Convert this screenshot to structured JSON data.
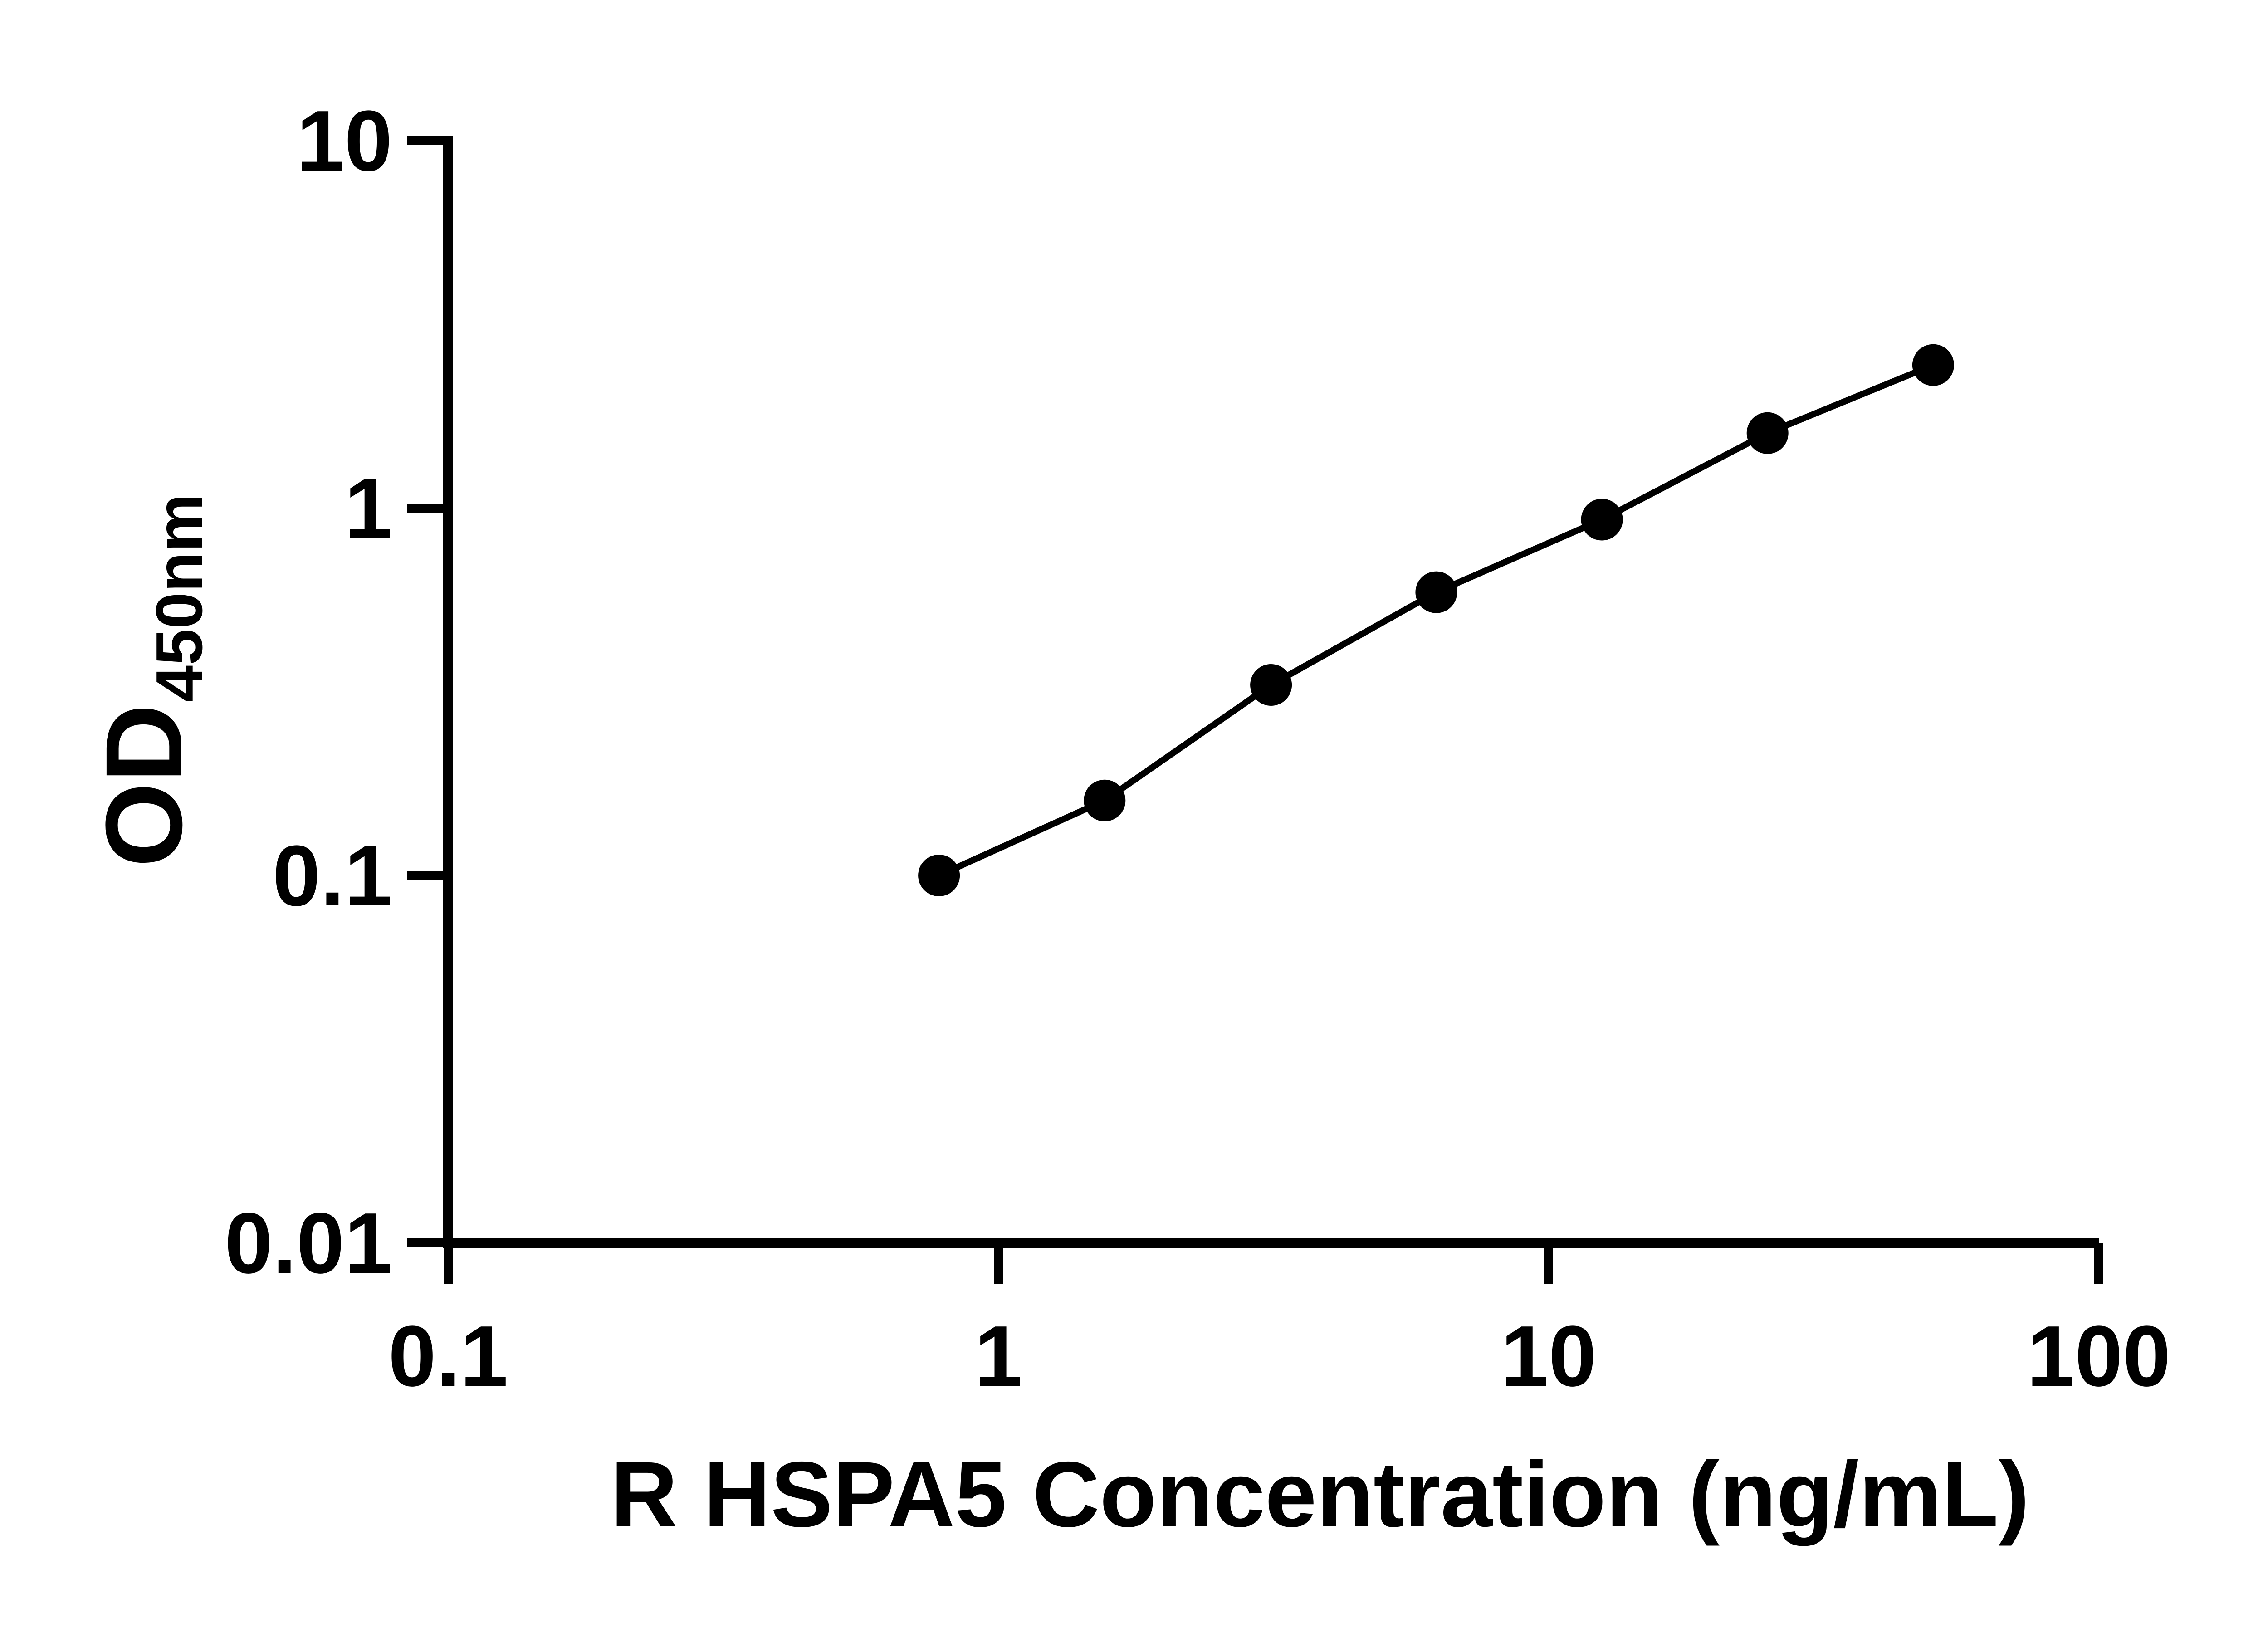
{
  "figure": {
    "background_color": "#ffffff",
    "axis_color": "#000000",
    "marker_color": "#000000",
    "line_color": "#000000"
  },
  "chart_data": {
    "type": "scatter",
    "title": "",
    "xlabel": "R HSPA5 Concentration (ng/mL)",
    "ylabel": "OD",
    "ylabel_subscript": "450nm",
    "xscale": "log",
    "yscale": "log",
    "xlim": [
      0.1,
      100
    ],
    "ylim": [
      0.01,
      10
    ],
    "x_tick_values": [
      0.1,
      1,
      10,
      100
    ],
    "x_tick_labels": [
      "0.1",
      "1",
      "10",
      "100"
    ],
    "y_tick_values": [
      10,
      1,
      0.1,
      0.01
    ],
    "y_tick_labels": [
      "10",
      "1",
      "0.1",
      "0.01"
    ],
    "grid": false,
    "legend": "none",
    "series": [
      {
        "marker": "filled-circle",
        "color": "#000000",
        "points": [
          {
            "x": 0.78,
            "y": 0.1
          },
          {
            "x": 1.56,
            "y": 0.16
          },
          {
            "x": 3.13,
            "y": 0.33
          },
          {
            "x": 6.25,
            "y": 0.59
          },
          {
            "x": 12.5,
            "y": 0.93
          },
          {
            "x": 25,
            "y": 1.6
          },
          {
            "x": 50,
            "y": 2.45
          }
        ]
      }
    ]
  }
}
